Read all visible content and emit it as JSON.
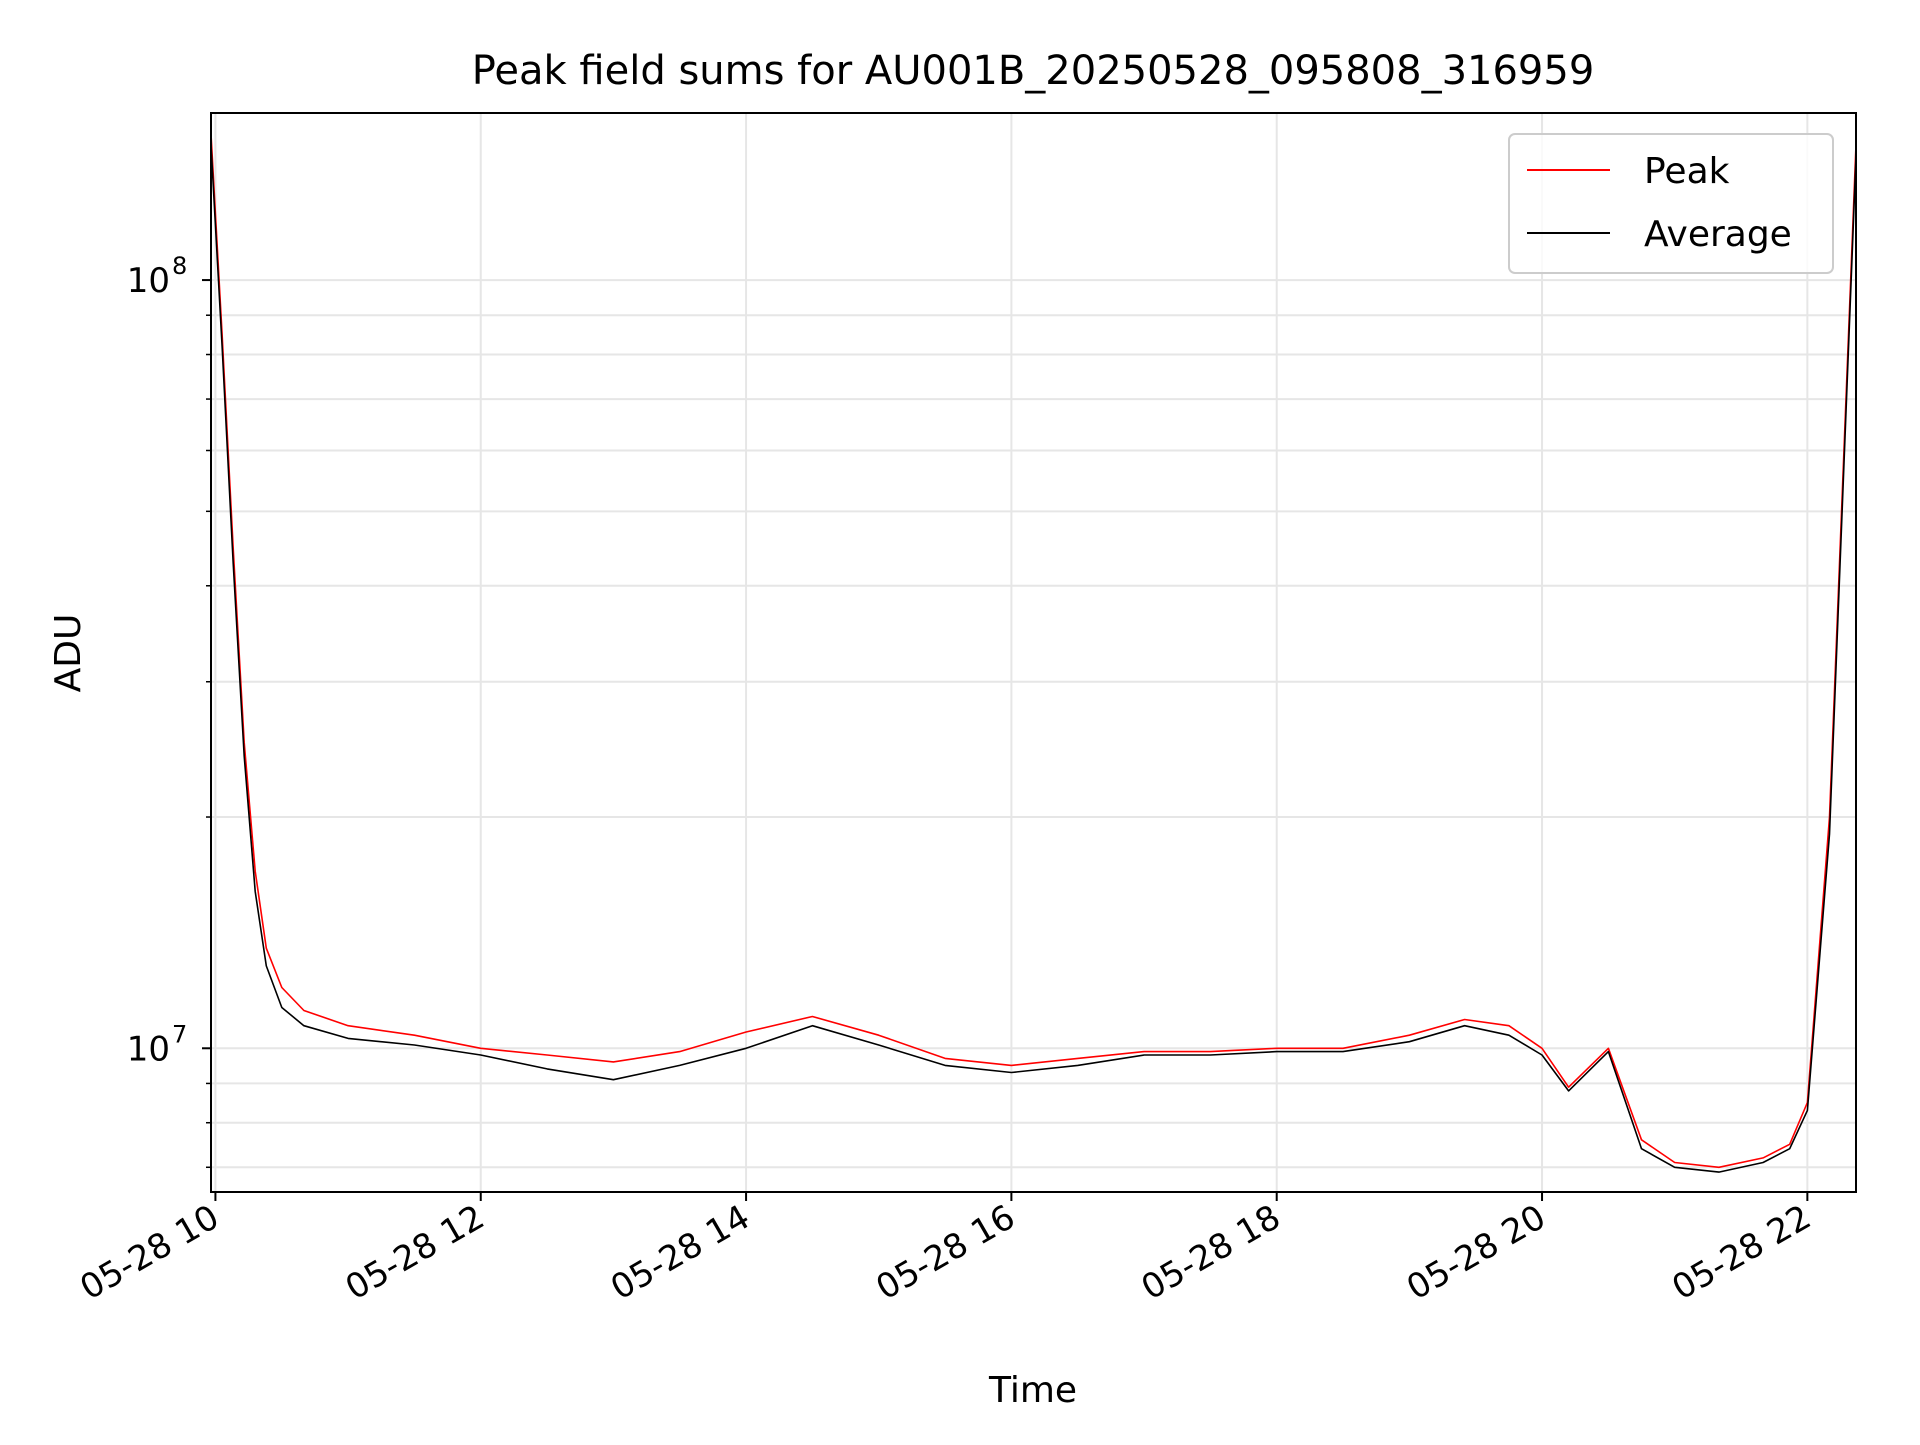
{
  "chart_data": {
    "type": "line",
    "title": "Peak field sums for AU001B_20250528_095808_316959",
    "xlabel": "Time",
    "ylabel": "ADU",
    "y_scale": "log",
    "ylim": [
      6500000,
      165000000
    ],
    "xlim": [
      "2025-05-28 09:58",
      "2025-05-28 22:22"
    ],
    "grid": true,
    "legend_position": "upper right",
    "x_ticks": [
      {
        "label": "05-28 10",
        "time": "2025-05-28 10:00"
      },
      {
        "label": "05-28 12",
        "time": "2025-05-28 12:00"
      },
      {
        "label": "05-28 14",
        "time": "2025-05-28 14:00"
      },
      {
        "label": "05-28 16",
        "time": "2025-05-28 16:00"
      },
      {
        "label": "05-28 18",
        "time": "2025-05-28 18:00"
      },
      {
        "label": "05-28 20",
        "time": "2025-05-28 20:00"
      },
      {
        "label": "05-28 22",
        "time": "2025-05-28 22:00"
      }
    ],
    "y_major_ticks": [
      {
        "label_base": "10",
        "label_exp": "7",
        "value": 10000000
      },
      {
        "label_base": "10",
        "label_exp": "8",
        "value": 100000000
      }
    ],
    "y_minor_ticks": [
      7000000,
      8000000,
      9000000,
      20000000,
      30000000,
      40000000,
      50000000,
      60000000,
      70000000,
      80000000,
      90000000
    ],
    "series": [
      {
        "name": "Peak",
        "color": "#ff0000",
        "x": [
          "2025-05-28 09:58",
          "2025-05-28 10:03",
          "2025-05-28 10:08",
          "2025-05-28 10:13",
          "2025-05-28 10:18",
          "2025-05-28 10:23",
          "2025-05-28 10:30",
          "2025-05-28 10:40",
          "2025-05-28 11:00",
          "2025-05-28 11:30",
          "2025-05-28 12:00",
          "2025-05-28 12:30",
          "2025-05-28 13:00",
          "2025-05-28 13:30",
          "2025-05-28 14:00",
          "2025-05-28 14:30",
          "2025-05-28 15:00",
          "2025-05-28 15:30",
          "2025-05-28 16:00",
          "2025-05-28 16:30",
          "2025-05-28 17:00",
          "2025-05-28 17:30",
          "2025-05-28 18:00",
          "2025-05-28 18:30",
          "2025-05-28 19:00",
          "2025-05-28 19:25",
          "2025-05-28 19:45",
          "2025-05-28 20:00",
          "2025-05-28 20:12",
          "2025-05-28 20:30",
          "2025-05-28 20:45",
          "2025-05-28 21:00",
          "2025-05-28 21:20",
          "2025-05-28 21:40",
          "2025-05-28 21:52",
          "2025-05-28 22:00",
          "2025-05-28 22:10",
          "2025-05-28 22:22"
        ],
        "values": [
          155000000,
          85000000,
          45000000,
          25000000,
          17000000,
          13500000,
          12000000,
          11200000,
          10700000,
          10400000,
          10000000,
          9800000,
          9600000,
          9900000,
          10500000,
          11000000,
          10400000,
          9700000,
          9500000,
          9700000,
          9900000,
          9900000,
          10000000,
          10000000,
          10400000,
          10900000,
          10700000,
          10000000,
          8900000,
          10000000,
          7600000,
          7100000,
          7000000,
          7200000,
          7500000,
          8500000,
          20000000,
          150000000
        ]
      },
      {
        "name": "Average",
        "color": "#000000",
        "x": [
          "2025-05-28 09:58",
          "2025-05-28 10:03",
          "2025-05-28 10:08",
          "2025-05-28 10:13",
          "2025-05-28 10:18",
          "2025-05-28 10:23",
          "2025-05-28 10:30",
          "2025-05-28 10:40",
          "2025-05-28 11:00",
          "2025-05-28 11:30",
          "2025-05-28 12:00",
          "2025-05-28 12:30",
          "2025-05-28 13:00",
          "2025-05-28 13:30",
          "2025-05-28 14:00",
          "2025-05-28 14:30",
          "2025-05-28 15:00",
          "2025-05-28 15:30",
          "2025-05-28 16:00",
          "2025-05-28 16:30",
          "2025-05-28 17:00",
          "2025-05-28 17:30",
          "2025-05-28 18:00",
          "2025-05-28 18:30",
          "2025-05-28 19:00",
          "2025-05-28 19:25",
          "2025-05-28 19:45",
          "2025-05-28 20:00",
          "2025-05-28 20:12",
          "2025-05-28 20:30",
          "2025-05-28 20:45",
          "2025-05-28 21:00",
          "2025-05-28 21:20",
          "2025-05-28 21:40",
          "2025-05-28 21:52",
          "2025-05-28 22:00",
          "2025-05-28 22:10",
          "2025-05-28 22:22"
        ],
        "values": [
          150000000,
          82000000,
          43000000,
          24000000,
          16000000,
          12800000,
          11300000,
          10700000,
          10300000,
          10100000,
          9800000,
          9400000,
          9100000,
          9500000,
          10000000,
          10700000,
          10100000,
          9500000,
          9300000,
          9500000,
          9800000,
          9800000,
          9900000,
          9900000,
          10200000,
          10700000,
          10400000,
          9800000,
          8800000,
          9900000,
          7400000,
          7000000,
          6900000,
          7100000,
          7400000,
          8300000,
          19000000,
          145000000
        ]
      }
    ]
  }
}
